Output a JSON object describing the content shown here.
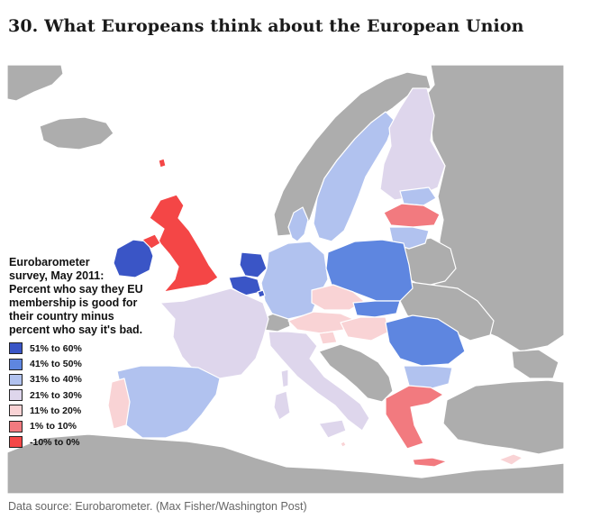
{
  "article": {
    "title": "30. What Europeans think about the European Union",
    "caption": "Data source: Eurobarometer. (Max Fisher/Washington Post)"
  },
  "legend": {
    "title": "Eurobarometer\nsurvey, May 2011:\nPercent who say they EU\nmembership is good for\ntheir country minus\npercent who say it's bad.",
    "items": [
      {
        "label": "51% to 60%",
        "color": "#3a55c6"
      },
      {
        "label": "41% to 50%",
        "color": "#5e86e0"
      },
      {
        "label": "31% to 40%",
        "color": "#b1c2ef"
      },
      {
        "label": "21% to 30%",
        "color": "#ded6ec"
      },
      {
        "label": "11% to 20%",
        "color": "#f9d3d5"
      },
      {
        "label": "1% to 10%",
        "color": "#f27a7f"
      },
      {
        "label": "-10% to 0%",
        "color": "#f44646"
      }
    ]
  },
  "colors": {
    "non_member": "#adadad",
    "sea": "#ffffff",
    "border": "#ffffff"
  }
}
